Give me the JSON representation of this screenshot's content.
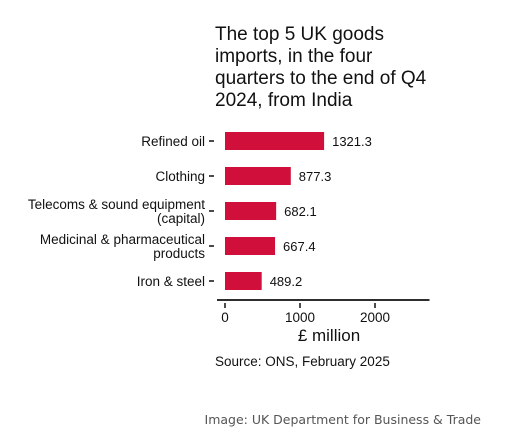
{
  "chart_data": {
    "type": "bar",
    "orientation": "horizontal",
    "title_lines": [
      "The top 5 UK goods",
      "imports, in the four",
      "quarters to the end of Q4",
      "2024, from India"
    ],
    "categories": [
      [
        "Refined oil"
      ],
      [
        "Clothing"
      ],
      [
        "Telecoms & sound equipment",
        "(capital)"
      ],
      [
        "Medicinal & pharmaceutical",
        "products"
      ],
      [
        "Iron & steel"
      ]
    ],
    "values": [
      1321.3,
      877.3,
      682.1,
      667.4,
      489.2
    ],
    "value_labels": [
      "1321.3",
      "877.3",
      "682.1",
      "667.4",
      "489.2"
    ],
    "xlabel": "£ million",
    "xticks": [
      0,
      1000,
      2000
    ],
    "xlim": [
      0,
      2700
    ],
    "bar_color": "#d0103a",
    "source": "Source: ONS, February 2025",
    "grid": false
  },
  "credit": "Image: UK Department for Business & Trade"
}
